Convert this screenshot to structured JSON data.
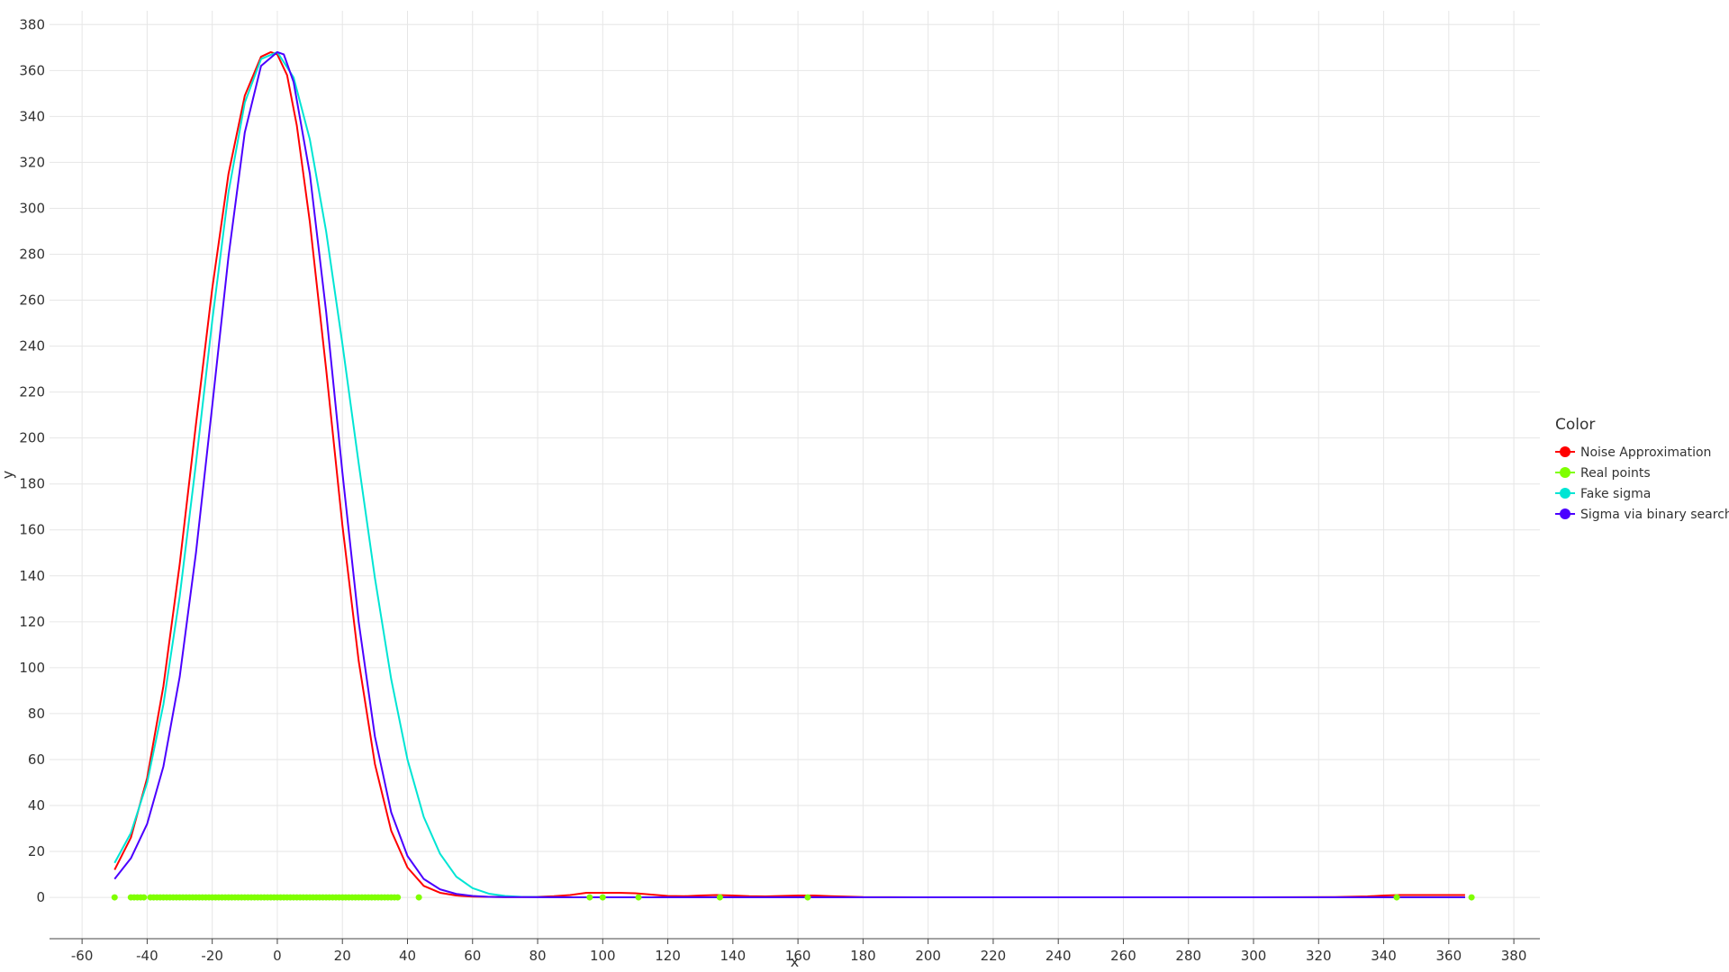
{
  "chart_data": {
    "type": "line",
    "title": "",
    "xlabel": "x",
    "ylabel": "y",
    "xlim": [
      -70,
      388
    ],
    "ylim": [
      -18,
      386
    ],
    "x_ticks": [
      -60,
      -40,
      -20,
      0,
      20,
      40,
      60,
      80,
      100,
      120,
      140,
      160,
      180,
      200,
      220,
      240,
      260,
      280,
      300,
      320,
      340,
      360,
      380
    ],
    "y_ticks": [
      0,
      20,
      40,
      60,
      80,
      100,
      120,
      140,
      160,
      180,
      200,
      220,
      240,
      260,
      280,
      300,
      320,
      340,
      360,
      380
    ],
    "grid": true,
    "legend": {
      "title": "Color",
      "position": "right"
    },
    "series": [
      {
        "name": "Noise Approximation",
        "type": "line",
        "color": "#ff0000",
        "points": [
          [
            -50,
            12
          ],
          [
            -45,
            26
          ],
          [
            -40,
            52
          ],
          [
            -35,
            92
          ],
          [
            -30,
            145
          ],
          [
            -25,
            206
          ],
          [
            -20,
            265
          ],
          [
            -15,
            315
          ],
          [
            -10,
            349
          ],
          [
            -5,
            366
          ],
          [
            -2,
            368
          ],
          [
            0,
            367
          ],
          [
            3,
            358
          ],
          [
            6,
            336
          ],
          [
            10,
            294
          ],
          [
            15,
            230
          ],
          [
            20,
            162
          ],
          [
            25,
            103
          ],
          [
            30,
            58
          ],
          [
            35,
            29
          ],
          [
            40,
            13
          ],
          [
            45,
            5
          ],
          [
            50,
            2
          ],
          [
            55,
            0.8
          ],
          [
            60,
            0.3
          ],
          [
            70,
            0.1
          ],
          [
            80,
            0.2
          ],
          [
            85,
            0.5
          ],
          [
            90,
            1
          ],
          [
            95,
            2
          ],
          [
            100,
            2
          ],
          [
            105,
            2
          ],
          [
            110,
            1.8
          ],
          [
            115,
            1.2
          ],
          [
            120,
            0.6
          ],
          [
            125,
            0.5
          ],
          [
            130,
            0.8
          ],
          [
            135,
            1
          ],
          [
            140,
            0.8
          ],
          [
            145,
            0.5
          ],
          [
            150,
            0.4
          ],
          [
            155,
            0.6
          ],
          [
            160,
            0.8
          ],
          [
            165,
            0.8
          ],
          [
            170,
            0.5
          ],
          [
            175,
            0.3
          ],
          [
            180,
            0.1
          ],
          [
            200,
            0
          ],
          [
            250,
            0
          ],
          [
            300,
            0
          ],
          [
            325,
            0.1
          ],
          [
            335,
            0.4
          ],
          [
            340,
            0.8
          ],
          [
            345,
            1
          ],
          [
            350,
            1
          ],
          [
            355,
            1
          ],
          [
            360,
            1
          ],
          [
            365,
            1
          ]
        ]
      },
      {
        "name": "Real points",
        "type": "scatter",
        "color": "#7fff00",
        "points_y": 0,
        "points_x": [
          -50,
          -45,
          -44,
          -43,
          -42,
          -41,
          -39,
          -38,
          -37,
          -36,
          -35,
          -34,
          -33,
          -32,
          -31,
          -30,
          -29,
          -28,
          -27,
          -26,
          -25,
          -24,
          -23,
          -22,
          -21,
          -20,
          -19,
          -18,
          -17,
          -16,
          -15,
          -14,
          -13,
          -12,
          -11,
          -10,
          -9,
          -8,
          -7,
          -6,
          -5,
          -4,
          -3,
          -2,
          -1,
          0,
          1,
          2,
          3,
          4,
          5,
          6,
          7,
          8,
          9,
          10,
          11,
          12,
          13,
          14,
          15,
          16,
          17,
          18,
          19,
          20,
          21,
          22,
          23,
          24,
          25,
          26,
          27,
          28,
          29,
          30,
          31,
          32,
          33,
          34,
          35,
          36,
          37,
          43.5,
          96,
          100,
          111,
          136,
          163,
          344,
          367
        ]
      },
      {
        "name": "Fake sigma",
        "type": "line",
        "color": "#00e5d4",
        "points": [
          [
            -50,
            15
          ],
          [
            -45,
            28
          ],
          [
            -40,
            50
          ],
          [
            -35,
            84
          ],
          [
            -30,
            131
          ],
          [
            -25,
            189
          ],
          [
            -20,
            251
          ],
          [
            -15,
            307
          ],
          [
            -10,
            346
          ],
          [
            -5,
            365
          ],
          [
            0,
            368
          ],
          [
            5,
            357
          ],
          [
            10,
            330
          ],
          [
            15,
            290
          ],
          [
            20,
            241
          ],
          [
            25,
            189
          ],
          [
            30,
            139
          ],
          [
            35,
            95
          ],
          [
            40,
            60
          ],
          [
            45,
            35
          ],
          [
            50,
            19
          ],
          [
            55,
            9
          ],
          [
            60,
            4
          ],
          [
            65,
            1.6
          ],
          [
            70,
            0.6
          ],
          [
            75,
            0.2
          ],
          [
            80,
            0.1
          ],
          [
            100,
            0
          ],
          [
            150,
            0
          ],
          [
            200,
            0
          ],
          [
            250,
            0
          ],
          [
            300,
            0
          ],
          [
            340,
            0
          ],
          [
            365,
            0
          ]
        ]
      },
      {
        "name": "Sigma via binary search",
        "type": "line",
        "color": "#4b00ff",
        "points": [
          [
            -50,
            8
          ],
          [
            -45,
            17
          ],
          [
            -40,
            32
          ],
          [
            -35,
            57
          ],
          [
            -30,
            96
          ],
          [
            -25,
            150
          ],
          [
            -20,
            214
          ],
          [
            -15,
            279
          ],
          [
            -10,
            333
          ],
          [
            -5,
            362
          ],
          [
            0,
            368
          ],
          [
            2,
            367
          ],
          [
            5,
            355
          ],
          [
            10,
            315
          ],
          [
            15,
            255
          ],
          [
            20,
            185
          ],
          [
            25,
            120
          ],
          [
            30,
            70
          ],
          [
            35,
            37
          ],
          [
            40,
            18
          ],
          [
            45,
            8
          ],
          [
            50,
            3.5
          ],
          [
            55,
            1.5
          ],
          [
            60,
            0.6
          ],
          [
            65,
            0.2
          ],
          [
            70,
            0.1
          ],
          [
            100,
            0
          ],
          [
            150,
            0
          ],
          [
            200,
            0
          ],
          [
            250,
            0
          ],
          [
            300,
            0
          ],
          [
            340,
            0
          ],
          [
            365,
            0
          ]
        ]
      }
    ]
  }
}
